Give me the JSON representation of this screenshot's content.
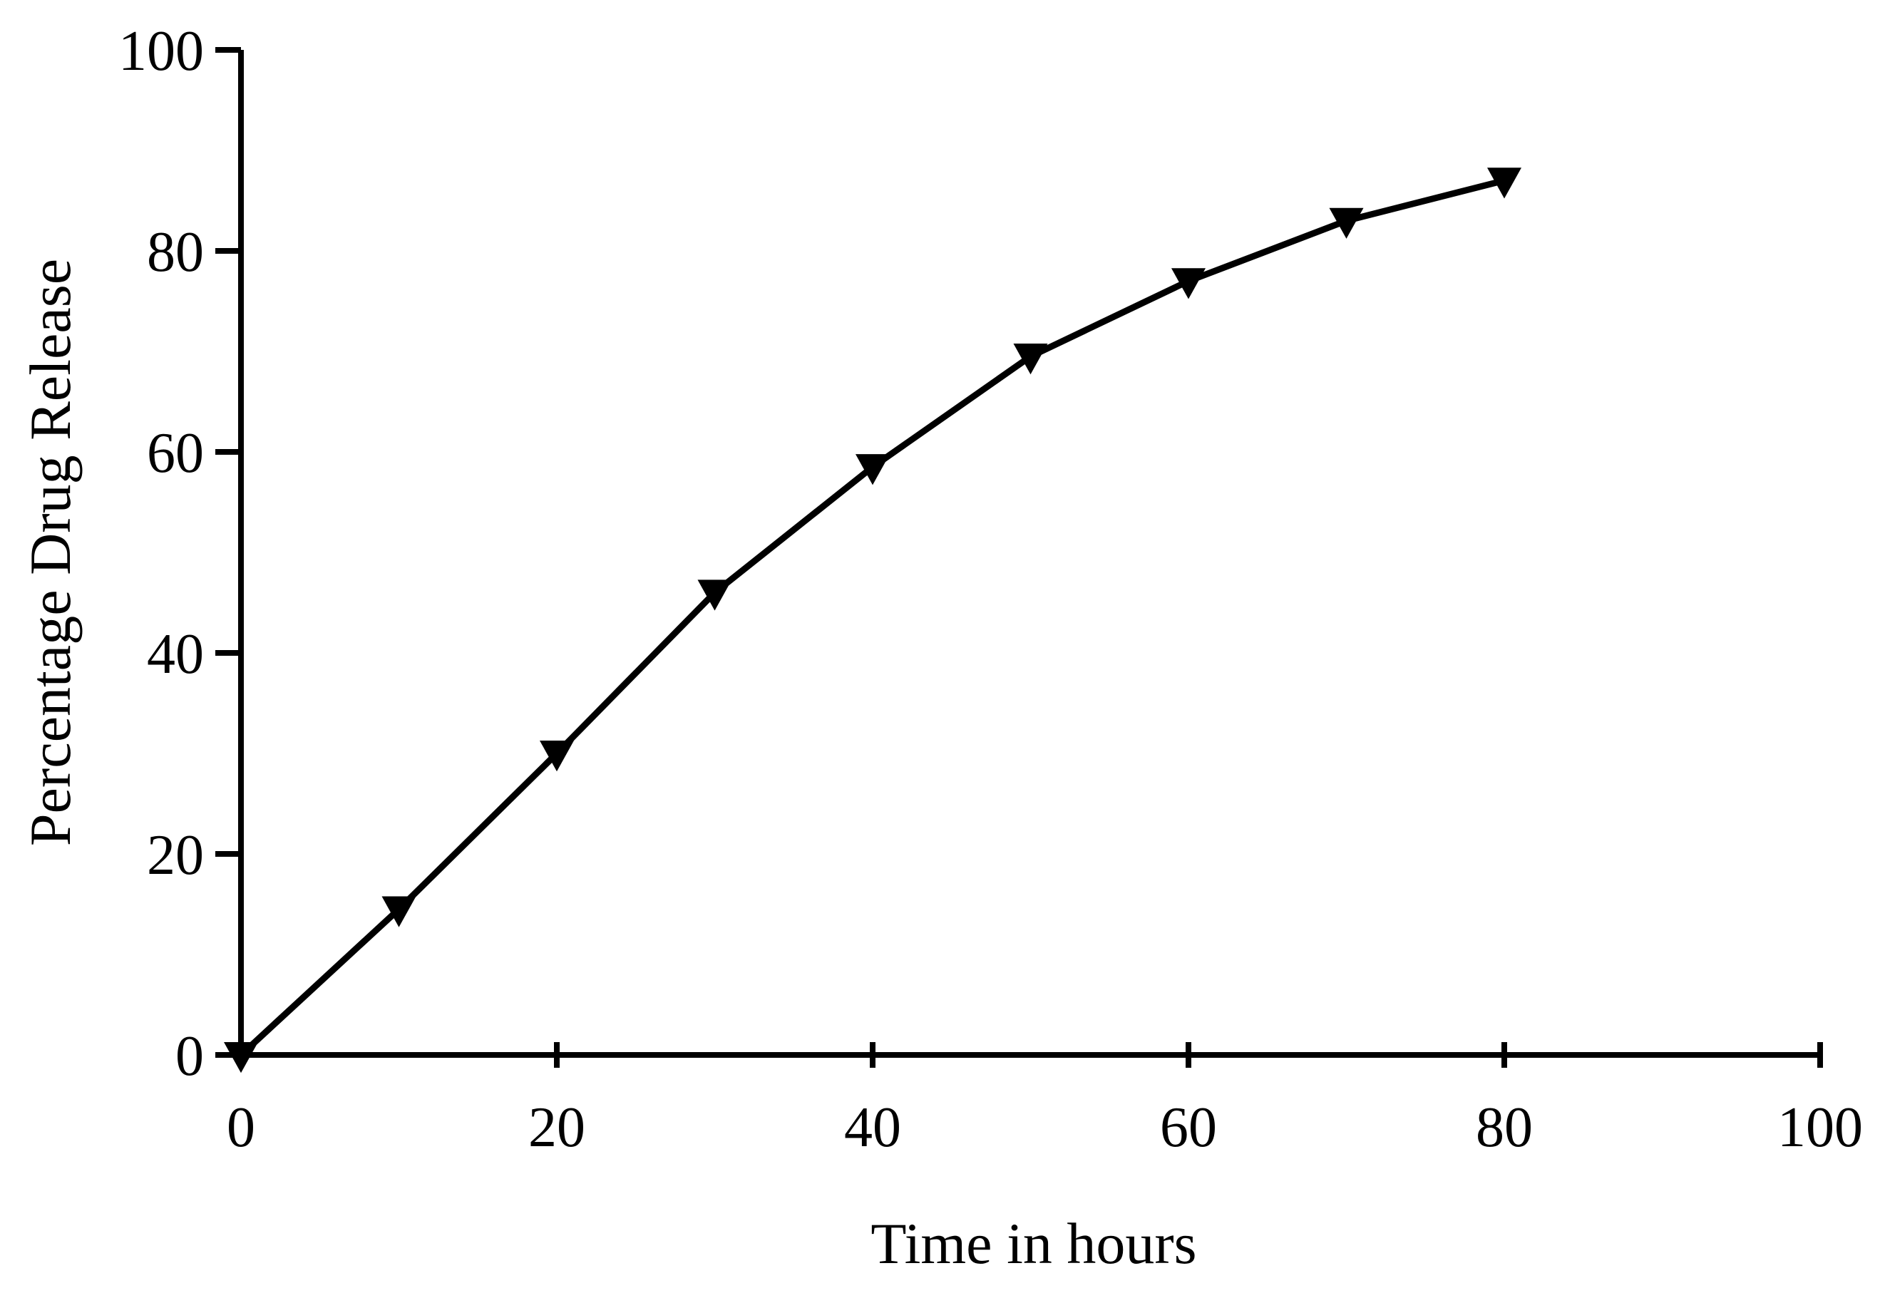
{
  "chart_data": {
    "type": "line",
    "title": "",
    "xlabel": "Time in hours",
    "ylabel": "Percentage Drug Release",
    "xlim": [
      0,
      100
    ],
    "ylim": [
      0,
      100
    ],
    "x_ticks": [
      "0",
      "20",
      "40",
      "60",
      "80",
      "100"
    ],
    "y_ticks": [
      "0",
      "20",
      "40",
      "60",
      "80",
      "100"
    ],
    "grid": false,
    "legend": "none",
    "series": [
      {
        "marker": "triangle-down",
        "color": "#000000",
        "x": [
          0,
          10,
          20,
          30,
          40,
          50,
          60,
          70,
          80
        ],
        "y": [
          0,
          14.5,
          30,
          46,
          58.5,
          69.5,
          77,
          83,
          87
        ]
      }
    ]
  }
}
